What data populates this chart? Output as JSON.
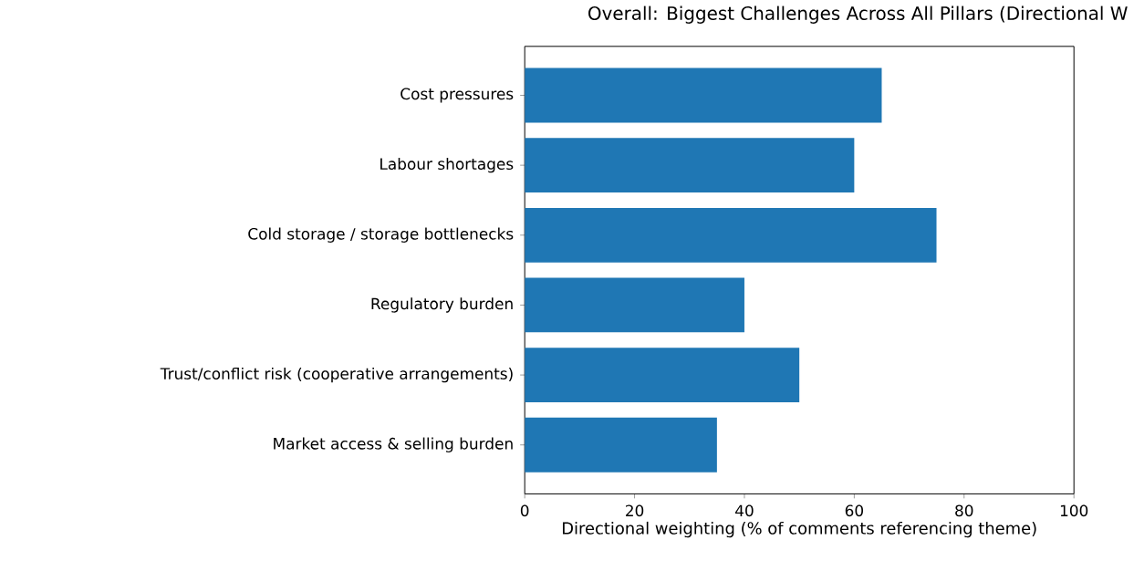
{
  "chart_data": {
    "type": "bar",
    "orientation": "horizontal",
    "title": "Overall: Biggest Challenges Across All Pillars (Directional W",
    "xlabel": "Directional weighting (% of comments referencing theme)",
    "categories": [
      "Cost pressures",
      "Labour shortages",
      "Cold storage / storage bottlenecks",
      "Regulatory burden",
      "Trust/conflict risk (cooperative arrangements)",
      "Market access & selling burden"
    ],
    "values": [
      65,
      60,
      75,
      40,
      50,
      35
    ],
    "color": "#1f77b4",
    "xlim": [
      0,
      100
    ],
    "xticks": [
      0,
      20,
      40,
      60,
      80,
      100
    ]
  }
}
